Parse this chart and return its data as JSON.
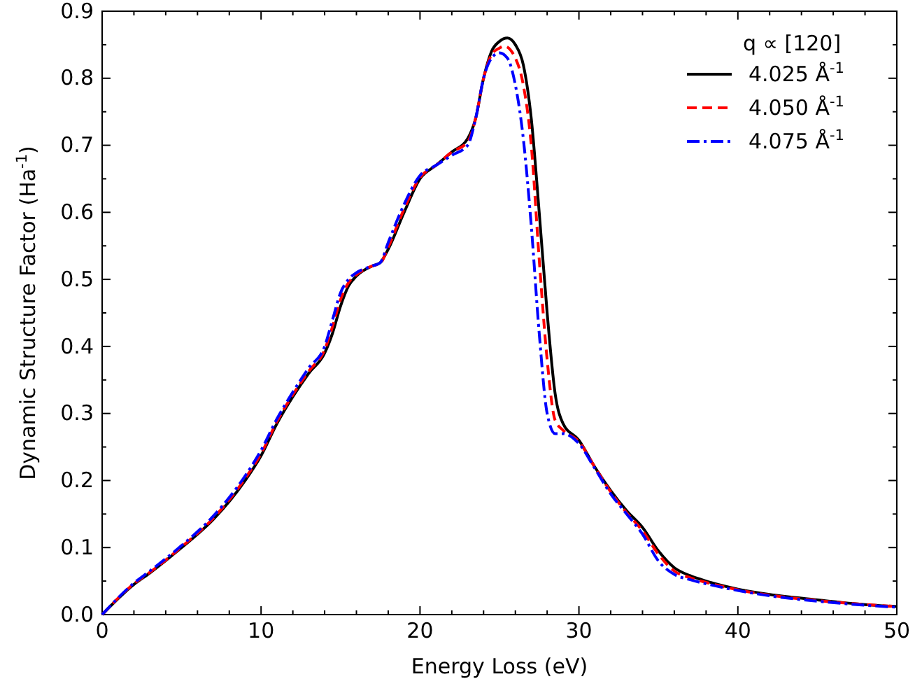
{
  "chart_data": {
    "type": "line",
    "xlabel": "Energy Loss (eV)",
    "ylabel": "Dynamic Structure Factor (Ha$^{-1}$)",
    "legend_title": "q ∝ [120]",
    "legend": "top right",
    "grid": false,
    "marker": "none",
    "xlim": [
      0,
      50
    ],
    "ylim": [
      0,
      0.9
    ],
    "xticks": [
      0,
      {
        "value": 2,
        "label": null
      },
      {
        "value": 4,
        "label": null
      },
      {
        "value": 6,
        "label": null
      },
      {
        "value": 8,
        "label": null
      },
      10,
      {
        "value": 12,
        "label": null
      },
      {
        "value": 14,
        "label": null
      },
      {
        "value": 16,
        "label": null
      },
      {
        "value": 18,
        "label": null
      },
      20,
      {
        "value": 22,
        "label": null
      },
      {
        "value": 24,
        "label": null
      },
      {
        "value": 26,
        "label": null
      },
      {
        "value": 28,
        "label": null
      },
      30,
      {
        "value": 32,
        "label": null
      },
      {
        "value": 34,
        "label": null
      },
      {
        "value": 36,
        "label": null
      },
      {
        "value": 38,
        "label": null
      },
      40,
      {
        "value": 42,
        "label": null
      },
      {
        "value": 44,
        "label": null
      },
      {
        "value": 46,
        "label": null
      },
      {
        "value": 48,
        "label": null
      },
      50
    ],
    "yticks": [
      {
        "value": 0,
        "label": "0.0"
      },
      {
        "value": 0.05,
        "label": null
      },
      0.1,
      {
        "value": 0.15,
        "label": null
      },
      0.2,
      {
        "value": 0.25,
        "label": null
      },
      0.3,
      {
        "value": 0.35,
        "label": null
      },
      0.4,
      {
        "value": 0.45,
        "label": null
      },
      0.5,
      {
        "value": 0.55,
        "label": null
      },
      0.6,
      {
        "value": 0.65,
        "label": null
      },
      0.7,
      {
        "value": 0.75,
        "label": null
      },
      0.8,
      {
        "value": 0.85,
        "label": null
      },
      0.9
    ],
    "series": [
      {
        "name": "4.025 Å$^{-1}$",
        "color": "#000000",
        "line_style": "solid",
        "x": [
          0,
          2,
          3,
          5,
          7,
          9,
          10,
          11,
          12,
          13,
          14,
          14.5,
          15,
          15.5,
          16,
          17,
          17.5,
          18,
          19,
          20,
          21,
          22,
          23,
          23.5,
          24,
          24.5,
          25,
          25.5,
          26,
          26.5,
          27,
          27.5,
          28,
          28.5,
          29,
          30,
          31,
          32,
          33,
          34,
          35,
          36,
          37,
          38,
          40,
          42,
          45,
          48,
          50
        ],
        "values": [
          0,
          0.045,
          0.062,
          0.1,
          0.142,
          0.2,
          0.237,
          0.285,
          0.325,
          0.36,
          0.39,
          0.42,
          0.46,
          0.49,
          0.505,
          0.52,
          0.525,
          0.545,
          0.6,
          0.65,
          0.67,
          0.69,
          0.71,
          0.74,
          0.8,
          0.84,
          0.855,
          0.86,
          0.85,
          0.82,
          0.74,
          0.6,
          0.45,
          0.33,
          0.285,
          0.26,
          0.22,
          0.185,
          0.155,
          0.13,
          0.095,
          0.07,
          0.058,
          0.05,
          0.038,
          0.03,
          0.022,
          0.015,
          0.012
        ]
      },
      {
        "name": "4.050 Å$^{-1}$",
        "color": "#ff0000",
        "line_style": "dashed",
        "x": [
          0,
          2,
          3,
          5,
          7,
          9,
          10,
          11,
          12,
          13,
          14,
          14.5,
          15,
          15.5,
          16,
          17,
          17.5,
          18,
          19,
          20,
          21,
          22,
          23,
          23.5,
          24,
          24.5,
          25,
          25.3,
          26,
          26.5,
          27,
          27.5,
          28,
          28.5,
          29,
          30,
          31,
          32,
          33,
          34,
          35,
          36,
          37,
          38,
          40,
          42,
          45,
          48,
          50
        ],
        "values": [
          0,
          0.046,
          0.063,
          0.101,
          0.144,
          0.203,
          0.24,
          0.288,
          0.328,
          0.363,
          0.395,
          0.43,
          0.47,
          0.495,
          0.507,
          0.52,
          0.524,
          0.548,
          0.605,
          0.652,
          0.67,
          0.69,
          0.705,
          0.74,
          0.8,
          0.835,
          0.845,
          0.848,
          0.83,
          0.79,
          0.7,
          0.53,
          0.38,
          0.29,
          0.275,
          0.258,
          0.22,
          0.183,
          0.152,
          0.125,
          0.09,
          0.065,
          0.055,
          0.048,
          0.037,
          0.029,
          0.021,
          0.015,
          0.012
        ]
      },
      {
        "name": "4.075 Å$^{-1}$",
        "color": "#0000ff",
        "line_style": "dashdot",
        "x": [
          0,
          2,
          3,
          5,
          7,
          9,
          10,
          11,
          12,
          13,
          14,
          14.5,
          15,
          15.5,
          16,
          17,
          17.5,
          18,
          19,
          20,
          21,
          22,
          23,
          23.5,
          24,
          24.5,
          25,
          25.5,
          26,
          26.5,
          27,
          27.5,
          28,
          28.5,
          29,
          30,
          31,
          32,
          33,
          34,
          35,
          36,
          37,
          38,
          40,
          42,
          45,
          48,
          50
        ],
        "values": [
          0,
          0.047,
          0.065,
          0.103,
          0.147,
          0.207,
          0.245,
          0.292,
          0.332,
          0.368,
          0.4,
          0.44,
          0.48,
          0.5,
          0.51,
          0.52,
          0.525,
          0.555,
          0.612,
          0.655,
          0.67,
          0.685,
          0.7,
          0.74,
          0.8,
          0.83,
          0.838,
          0.83,
          0.79,
          0.71,
          0.58,
          0.42,
          0.3,
          0.27,
          0.27,
          0.255,
          0.218,
          0.18,
          0.15,
          0.12,
          0.08,
          0.06,
          0.052,
          0.046,
          0.036,
          0.028,
          0.02,
          0.014,
          0.011
        ]
      }
    ]
  }
}
